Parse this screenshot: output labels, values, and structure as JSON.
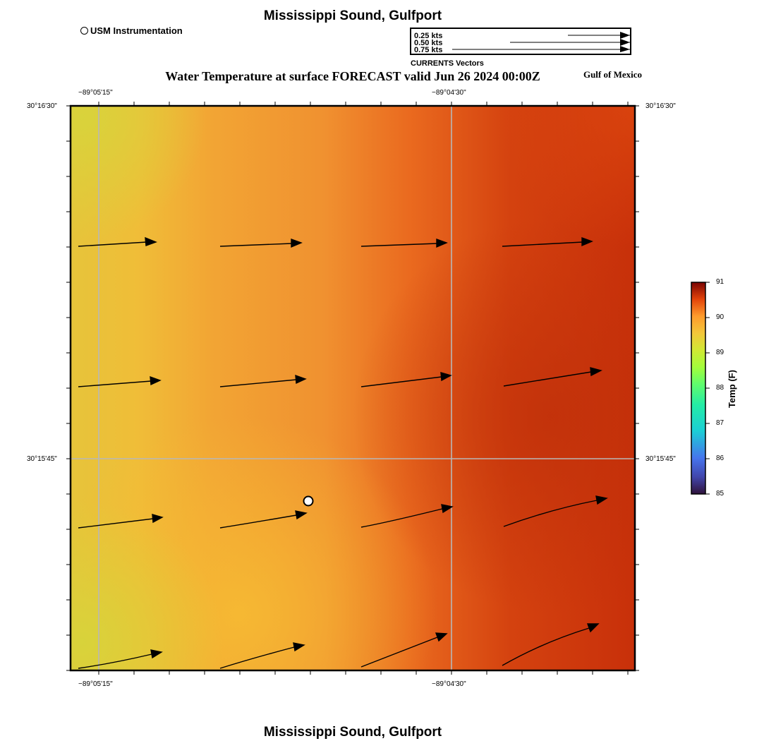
{
  "header": {
    "title": "Mississippi Sound, Gulfport",
    "subtitle": "Water Temperature at surface FORECAST valid Jun 26 2024 00:00Z",
    "region": "Gulf of Mexico"
  },
  "legend": {
    "station_label": "USM Instrumentation"
  },
  "vector_key": {
    "labels": [
      "0.25 kts",
      "0.50 kts",
      "0.75 kts"
    ],
    "caption": "CURRENTS Vectors"
  },
  "map": {
    "lon_ticks": [
      "−89°05'15\"",
      "−89°04'30\""
    ],
    "lat_ticks": [
      "30°16'30\"",
      "30°15'45\""
    ],
    "station": {
      "name": "USM Instrumentation"
    }
  },
  "colorbar": {
    "title": "Temp (F)",
    "min": 85,
    "max": 91,
    "ticks": [
      "91",
      "90",
      "89",
      "88",
      "87",
      "86",
      "85"
    ]
  },
  "footer": {
    "title": "Mississippi Sound, Gulfport"
  }
}
